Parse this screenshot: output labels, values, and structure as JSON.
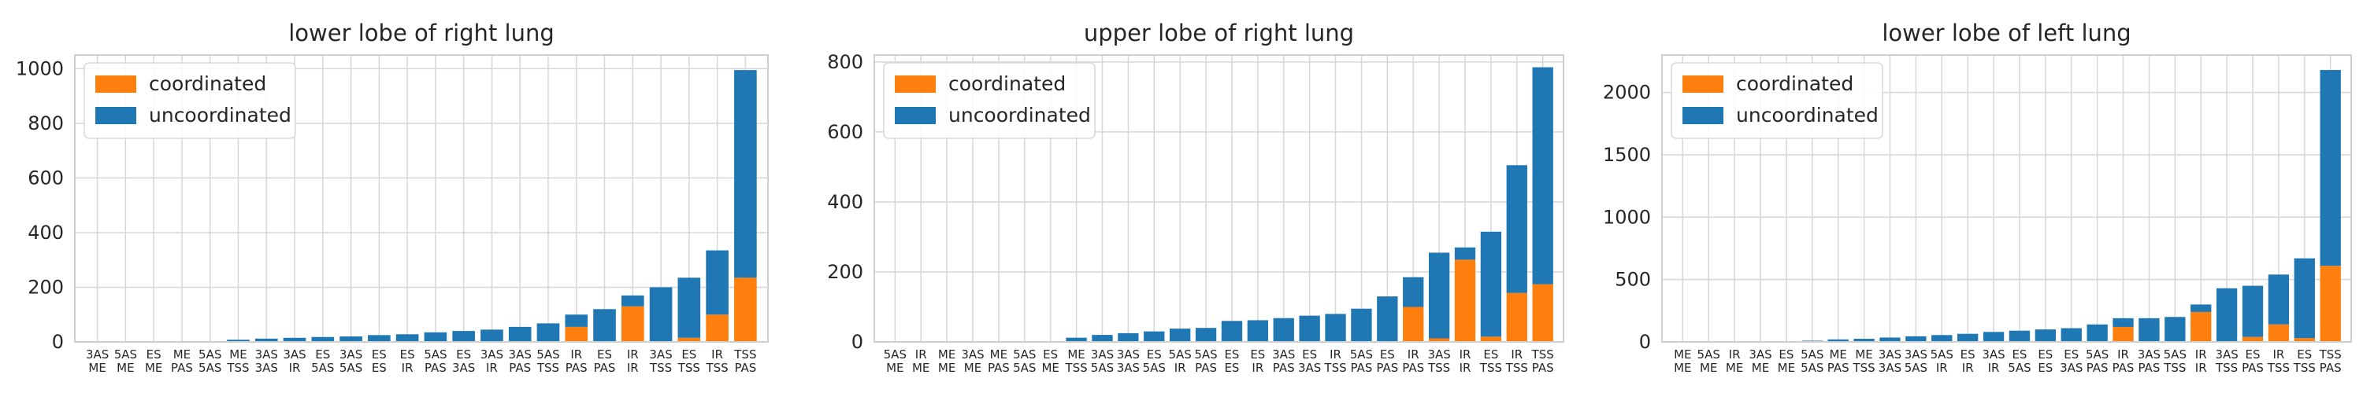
{
  "colors": {
    "coordinated": "#ff7f0e",
    "uncoordinated": "#1f77b4"
  },
  "chart_data": [
    {
      "type": "bar",
      "stacked": true,
      "title": "lower lobe of right lung",
      "legend_position": "top-left",
      "grid": true,
      "ylim": [
        0,
        1050
      ],
      "yticks": [
        0,
        200,
        400,
        600,
        800,
        1000
      ],
      "categories": [
        "3AS\nME",
        "5AS\nME",
        "ES\nME",
        "ME\nPAS",
        "5AS\n5AS",
        "ME\nTSS",
        "3AS\n3AS",
        "3AS\nIR",
        "ES\n5AS",
        "3AS\n5AS",
        "ES\nES",
        "ES\nIR",
        "5AS\nPAS",
        "ES\n3AS",
        "3AS\nIR",
        "3AS\nPAS",
        "5AS\nTSS",
        "IR\nPAS",
        "ES\nPAS",
        "IR\nIR",
        "3AS\nTSS",
        "ES\nTSS",
        "IR\nTSS",
        "TSS\nPAS"
      ],
      "series": [
        {
          "name": "coordinated",
          "values": [
            0,
            0,
            0,
            0,
            0,
            0,
            0,
            0,
            0,
            0,
            0,
            0,
            0,
            0,
            0,
            0,
            0,
            55,
            0,
            130,
            0,
            15,
            100,
            235
          ]
        },
        {
          "name": "uncoordinated",
          "values": [
            0,
            0,
            0,
            0,
            2,
            8,
            12,
            15,
            18,
            20,
            25,
            28,
            35,
            40,
            45,
            55,
            68,
            45,
            120,
            40,
            200,
            220,
            235,
            760
          ]
        }
      ]
    },
    {
      "type": "bar",
      "stacked": true,
      "title": "upper lobe of right lung",
      "legend_position": "top-left",
      "grid": true,
      "ylim": [
        0,
        820
      ],
      "yticks": [
        0,
        200,
        400,
        600,
        800
      ],
      "categories": [
        "5AS\nME",
        "IR\nME",
        "ME\nME",
        "3AS\nME",
        "ME\nPAS",
        "5AS\n5AS",
        "ES\nME",
        "ME\nTSS",
        "3AS\n5AS",
        "3AS\n3AS",
        "ES\n5AS",
        "5AS\nIR",
        "5AS\nPAS",
        "ES\nES",
        "ES\nIR",
        "3AS\nPAS",
        "ES\n3AS",
        "IR\nTSS",
        "5AS\nPAS",
        "ES\nPAS",
        "IR\nPAS",
        "3AS\nTSS",
        "IR\nIR",
        "ES\nTSS",
        "IR\nTSS",
        "TSS\nPAS"
      ],
      "series": [
        {
          "name": "coordinated",
          "values": [
            0,
            0,
            0,
            0,
            0,
            0,
            0,
            0,
            0,
            0,
            0,
            0,
            0,
            0,
            0,
            0,
            0,
            0,
            0,
            0,
            100,
            10,
            235,
            15,
            140,
            165
          ]
        },
        {
          "name": "uncoordinated",
          "values": [
            0,
            0,
            0,
            0,
            0,
            0,
            0,
            12,
            20,
            25,
            30,
            38,
            40,
            60,
            62,
            68,
            75,
            80,
            95,
            130,
            85,
            245,
            35,
            300,
            365,
            620
          ]
        }
      ]
    },
    {
      "type": "bar",
      "stacked": true,
      "title": "lower lobe of left lung",
      "legend_position": "top-left",
      "grid": true,
      "ylim": [
        0,
        2300
      ],
      "yticks": [
        0,
        500,
        1000,
        1500,
        2000
      ],
      "categories": [
        "ME\nME",
        "5AS\nME",
        "IR\nME",
        "3AS\nME",
        "ES\nME",
        "5AS\n5AS",
        "ME\nPAS",
        "ME\nTSS",
        "3AS\n3AS",
        "3AS\n5AS",
        "5AS\nIR",
        "ES\nIR",
        "3AS\nIR",
        "ES\n5AS",
        "ES\nES",
        "ES\n3AS",
        "5AS\nPAS",
        "IR\nPAS",
        "3AS\nPAS",
        "5AS\nTSS",
        "IR\nIR",
        "3AS\nTSS",
        "ES\nPAS",
        "IR\nTSS",
        "ES\nTSS",
        "TSS\nPAS"
      ],
      "series": [
        {
          "name": "coordinated",
          "values": [
            0,
            0,
            0,
            0,
            0,
            0,
            0,
            0,
            0,
            0,
            0,
            0,
            0,
            0,
            0,
            0,
            0,
            120,
            0,
            0,
            240,
            0,
            40,
            140,
            30,
            610
          ]
        },
        {
          "name": "uncoordinated",
          "values": [
            0,
            0,
            0,
            0,
            5,
            10,
            20,
            25,
            35,
            45,
            55,
            65,
            80,
            90,
            100,
            110,
            140,
            70,
            190,
            200,
            60,
            430,
            410,
            400,
            640,
            1570
          ]
        }
      ]
    }
  ]
}
